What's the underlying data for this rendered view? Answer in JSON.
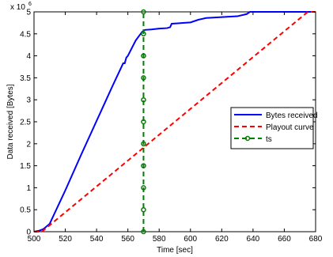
{
  "chart_data": {
    "type": "line",
    "xlabel": "Time [sec]",
    "ylabel": "Data received [Bytes]",
    "xlim": [
      500,
      680
    ],
    "ylim": [
      0,
      5000000
    ],
    "x_ticks": [
      "500",
      "520",
      "540",
      "560",
      "580",
      "600",
      "620",
      "640",
      "660",
      "680"
    ],
    "y_ticks": [
      "0",
      "0.5",
      "1",
      "1.5",
      "2",
      "2.5",
      "3",
      "3.5",
      "4",
      "4.5",
      "5"
    ],
    "y_exponent": {
      "base": "x 10",
      "power": "6"
    },
    "grid": false,
    "legend_position": "right",
    "series": [
      {
        "name": "Bytes received",
        "color": "#0000ff",
        "style": "solid",
        "x": [
          500,
          503,
          506,
          508,
          510,
          520,
          530,
          540,
          550,
          557,
          558,
          559,
          560,
          565,
          569,
          570,
          571,
          575,
          580,
          585,
          587,
          588,
          592,
          596,
          600,
          605,
          610,
          620,
          630,
          636,
          638,
          640,
          660,
          680
        ],
        "y": [
          0,
          20000,
          60000,
          120000,
          180000,
          940000,
          1740000,
          2520000,
          3300000,
          3830000,
          3830000,
          3960000,
          4000000,
          4350000,
          4540000,
          4570000,
          4590000,
          4600000,
          4620000,
          4630000,
          4650000,
          4730000,
          4740000,
          4750000,
          4760000,
          4820000,
          4860000,
          4880000,
          4900000,
          4950000,
          5000000,
          5000000,
          5000000,
          5000000
        ]
      },
      {
        "name": "Playout curve",
        "color": "#ff0000",
        "style": "dashed",
        "x": [
          500,
          505,
          675,
          680
        ],
        "y": [
          0,
          0,
          5000000,
          5000000
        ]
      },
      {
        "name": "ts",
        "color": "#008000",
        "style": "dashed-markers",
        "x": [
          570,
          570,
          570,
          570,
          570,
          570,
          570,
          570,
          570,
          570,
          570
        ],
        "y": [
          0,
          500000,
          1000000,
          1500000,
          2000000,
          2500000,
          3000000,
          3500000,
          4000000,
          4500000,
          5000000
        ]
      }
    ]
  }
}
